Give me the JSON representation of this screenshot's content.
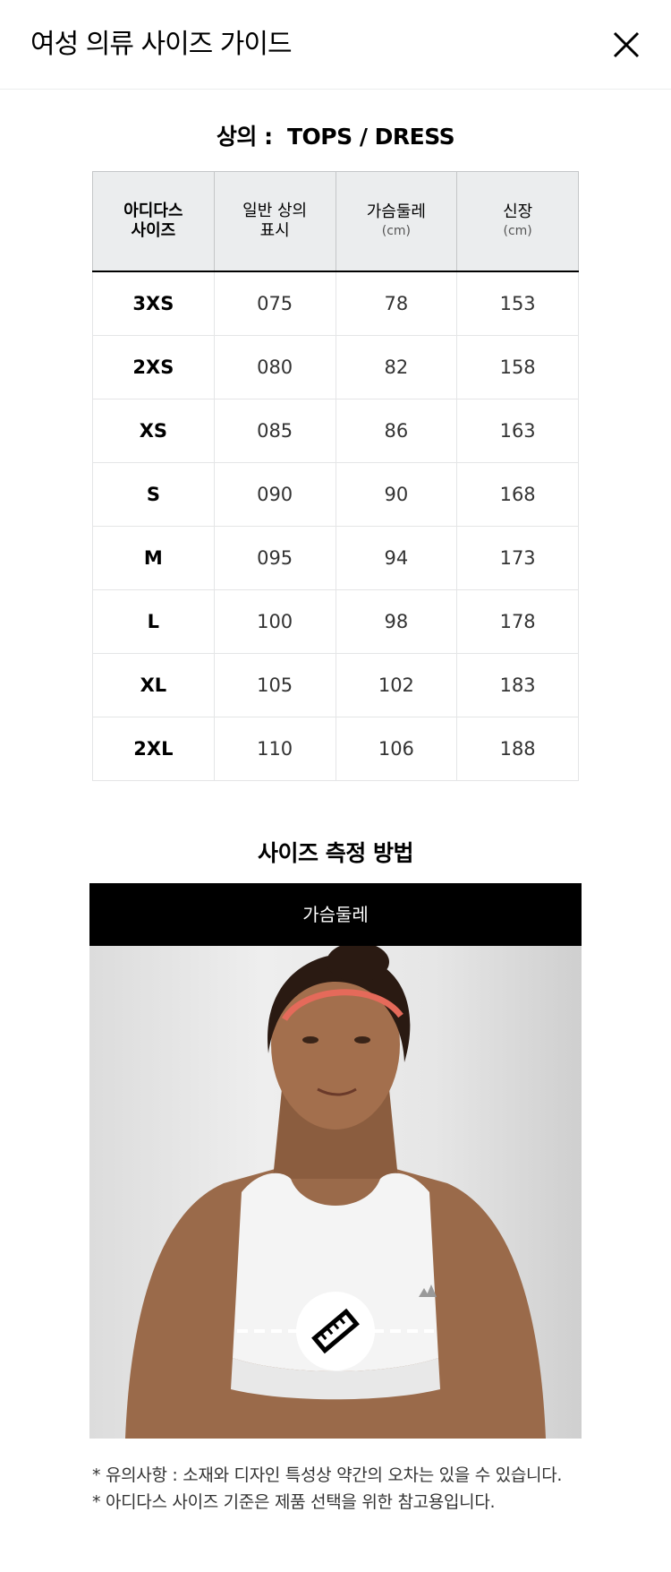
{
  "header": {
    "title": "여성 의류 사이즈 가이드",
    "close_icon": "close-icon"
  },
  "tops_section": {
    "title": "상의 :  TOPS / DRESS",
    "columns": [
      {
        "label": "아디다스\n사이즈",
        "unit": ""
      },
      {
        "label": "일반 상의\n표시",
        "unit": ""
      },
      {
        "label": "가슴둘레",
        "unit": "(cm)"
      },
      {
        "label": "신장",
        "unit": "(cm)"
      }
    ],
    "rows": [
      {
        "size": "3XS",
        "korean": "075",
        "chest": "78",
        "height": "153"
      },
      {
        "size": "2XS",
        "korean": "080",
        "chest": "82",
        "height": "158"
      },
      {
        "size": "XS",
        "korean": "085",
        "chest": "86",
        "height": "163"
      },
      {
        "size": "S",
        "korean": "090",
        "chest": "90",
        "height": "168"
      },
      {
        "size": "M",
        "korean": "095",
        "chest": "94",
        "height": "173"
      },
      {
        "size": "L",
        "korean": "100",
        "chest": "98",
        "height": "178"
      },
      {
        "size": "XL",
        "korean": "105",
        "chest": "102",
        "height": "183"
      },
      {
        "size": "2XL",
        "korean": "110",
        "chest": "106",
        "height": "188"
      }
    ]
  },
  "measure_section": {
    "title": "사이즈 측정 방법",
    "tab_label": "가슴둘레",
    "ruler_icon": "ruler-icon",
    "colors": {
      "tab_background": "#000000",
      "header_background": "#ebedee"
    }
  },
  "notes": [
    "* 유의사항 : 소재와 디자인 특성상 약간의 오차는 있을 수 있습니다.",
    "* 아디다스 사이즈 기준은 제품 선택을 위한 참고용입니다."
  ]
}
